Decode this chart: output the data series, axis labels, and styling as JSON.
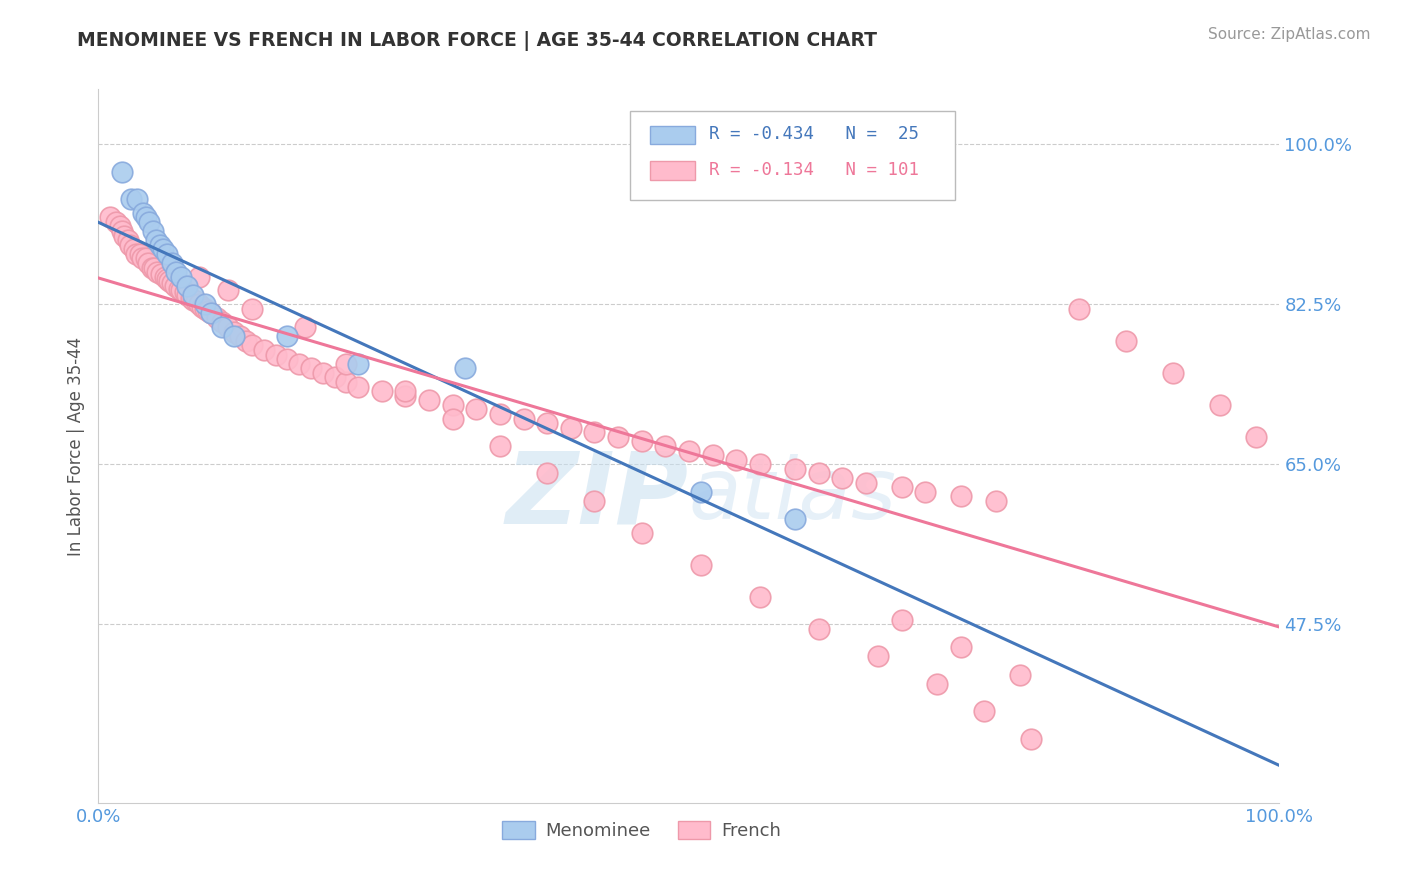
{
  "title": "MENOMINEE VS FRENCH IN LABOR FORCE | AGE 35-44 CORRELATION CHART",
  "source_text": "Source: ZipAtlas.com",
  "ylabel": "In Labor Force | Age 35-44",
  "xlim": [
    0.0,
    1.0
  ],
  "ylim": [
    0.28,
    1.06
  ],
  "yticks": [
    0.475,
    0.65,
    0.825,
    1.0
  ],
  "ytick_labels": [
    "47.5%",
    "65.0%",
    "82.5%",
    "100.0%"
  ],
  "xticks": [
    0.0,
    1.0
  ],
  "xtick_labels": [
    "0.0%",
    "100.0%"
  ],
  "menominee_color": "#aaccee",
  "menominee_edge": "#88aadd",
  "french_color": "#ffbbcc",
  "french_edge": "#ee99aa",
  "menominee_line_color": "#4477bb",
  "french_line_color": "#ee7799",
  "axis_color": "#5599dd",
  "grid_color": "#cccccc",
  "title_color": "#333333",
  "source_color": "#999999",
  "watermark_color": "#cce4f5",
  "menominee_x": [
    0.02,
    0.028,
    0.033,
    0.038,
    0.04,
    0.043,
    0.046,
    0.049,
    0.052,
    0.055,
    0.058,
    0.062,
    0.066,
    0.07,
    0.075,
    0.08,
    0.09,
    0.095,
    0.105,
    0.115,
    0.16,
    0.22,
    0.31,
    0.51,
    0.59
  ],
  "menominee_y": [
    0.97,
    0.94,
    0.94,
    0.925,
    0.92,
    0.915,
    0.905,
    0.895,
    0.89,
    0.885,
    0.88,
    0.87,
    0.86,
    0.855,
    0.845,
    0.835,
    0.825,
    0.815,
    0.8,
    0.79,
    0.79,
    0.76,
    0.755,
    0.62,
    0.59
  ],
  "french_x": [
    0.01,
    0.015,
    0.018,
    0.02,
    0.022,
    0.025,
    0.027,
    0.03,
    0.032,
    0.035,
    0.037,
    0.04,
    0.042,
    0.045,
    0.047,
    0.05,
    0.053,
    0.056,
    0.058,
    0.06,
    0.062,
    0.065,
    0.068,
    0.07,
    0.073,
    0.075,
    0.078,
    0.08,
    0.083,
    0.085,
    0.088,
    0.09,
    0.093,
    0.095,
    0.1,
    0.105,
    0.11,
    0.115,
    0.12,
    0.125,
    0.13,
    0.14,
    0.15,
    0.16,
    0.17,
    0.18,
    0.19,
    0.2,
    0.21,
    0.22,
    0.24,
    0.26,
    0.28,
    0.3,
    0.32,
    0.34,
    0.36,
    0.38,
    0.4,
    0.42,
    0.44,
    0.46,
    0.48,
    0.5,
    0.52,
    0.54,
    0.56,
    0.59,
    0.61,
    0.63,
    0.65,
    0.68,
    0.7,
    0.73,
    0.76,
    0.085,
    0.11,
    0.13,
    0.175,
    0.21,
    0.26,
    0.3,
    0.34,
    0.38,
    0.42,
    0.46,
    0.51,
    0.56,
    0.61,
    0.66,
    0.71,
    0.75,
    0.79,
    0.83,
    0.87,
    0.91,
    0.95,
    0.98,
    0.68,
    0.73,
    0.78
  ],
  "french_y": [
    0.92,
    0.915,
    0.91,
    0.905,
    0.9,
    0.895,
    0.89,
    0.885,
    0.88,
    0.88,
    0.875,
    0.875,
    0.87,
    0.865,
    0.865,
    0.86,
    0.858,
    0.855,
    0.852,
    0.85,
    0.848,
    0.845,
    0.842,
    0.84,
    0.838,
    0.835,
    0.832,
    0.83,
    0.828,
    0.825,
    0.822,
    0.82,
    0.818,
    0.815,
    0.81,
    0.805,
    0.8,
    0.795,
    0.79,
    0.785,
    0.78,
    0.775,
    0.77,
    0.765,
    0.76,
    0.755,
    0.75,
    0.745,
    0.74,
    0.735,
    0.73,
    0.725,
    0.72,
    0.715,
    0.71,
    0.705,
    0.7,
    0.695,
    0.69,
    0.685,
    0.68,
    0.675,
    0.67,
    0.665,
    0.66,
    0.655,
    0.65,
    0.645,
    0.64,
    0.635,
    0.63,
    0.625,
    0.62,
    0.615,
    0.61,
    0.855,
    0.84,
    0.82,
    0.8,
    0.76,
    0.73,
    0.7,
    0.67,
    0.64,
    0.61,
    0.575,
    0.54,
    0.505,
    0.47,
    0.44,
    0.41,
    0.38,
    0.35,
    0.82,
    0.785,
    0.75,
    0.715,
    0.68,
    0.48,
    0.45,
    0.42
  ]
}
